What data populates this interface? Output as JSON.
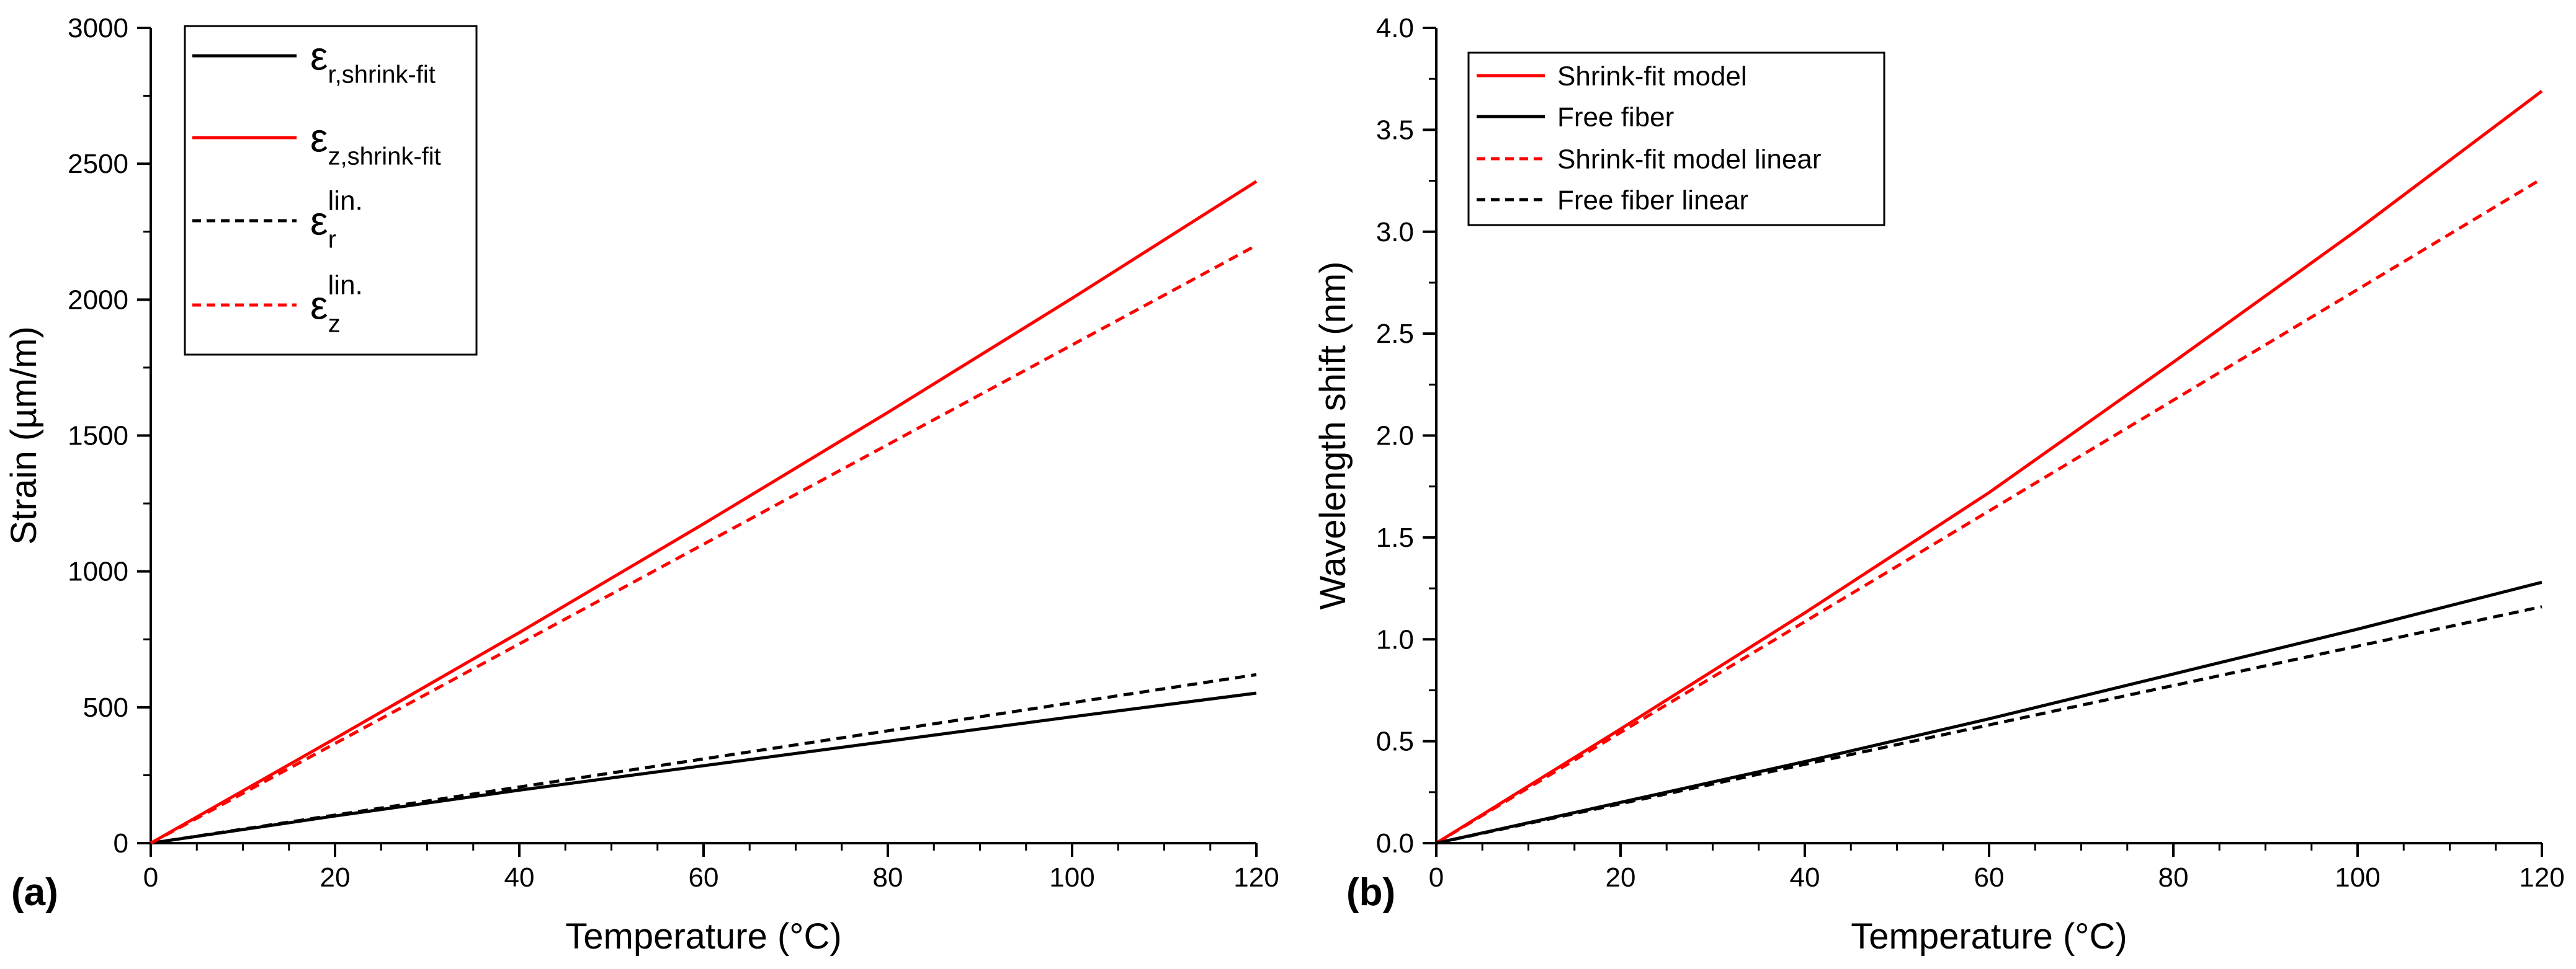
{
  "chart_data": [
    {
      "type": "line",
      "panel_label": "(a)",
      "xlabel": "Temperature (°C)",
      "ylabel": "Strain (µm/m)",
      "xlim": [
        0,
        120
      ],
      "ylim": [
        0,
        3000
      ],
      "xticks": [
        0,
        20,
        40,
        60,
        80,
        100,
        120
      ],
      "xtick_labels": [
        "0",
        "20",
        "40",
        "60",
        "80",
        "100",
        "120"
      ],
      "yticks": [
        0,
        500,
        1000,
        1500,
        2000,
        2500,
        3000
      ],
      "ytick_labels": [
        "0",
        "500",
        "1000",
        "1500",
        "2000",
        "2500",
        "3000"
      ],
      "grid": false,
      "legend_position": "top-left",
      "series": [
        {
          "name": "ε_r,shrink-fit",
          "legend_base": "ε",
          "legend_sub": "r,shrink-fit",
          "legend_sup": "",
          "color": "#000000",
          "dash": "solid",
          "x": [
            0,
            20,
            40,
            60,
            80,
            100,
            120
          ],
          "y": [
            0,
            100,
            195,
            285,
            375,
            465,
            552
          ]
        },
        {
          "name": "ε_z,shrink-fit",
          "legend_base": "ε",
          "legend_sub": "z,shrink-fit",
          "legend_sup": "",
          "color": "#ff0000",
          "dash": "solid",
          "x": [
            0,
            20,
            40,
            60,
            80,
            100,
            120
          ],
          "y": [
            0,
            385,
            775,
            1175,
            1585,
            2005,
            2435
          ]
        },
        {
          "name": "ε_r^lin.",
          "legend_base": "ε",
          "legend_sub": "r",
          "legend_sup": "lin.",
          "color": "#000000",
          "dash": "dashed",
          "x": [
            0,
            120
          ],
          "y": [
            0,
            620
          ]
        },
        {
          "name": "ε_z^lin.",
          "legend_base": "ε",
          "legend_sub": "z",
          "legend_sup": "lin.",
          "color": "#ff0000",
          "dash": "dashed",
          "x": [
            0,
            120
          ],
          "y": [
            0,
            2200
          ]
        }
      ]
    },
    {
      "type": "line",
      "panel_label": "(b)",
      "xlabel": "Temperature (°C)",
      "ylabel": "Wavelength shift (nm)",
      "xlim": [
        0,
        120
      ],
      "ylim": [
        0,
        4
      ],
      "xticks": [
        0,
        20,
        40,
        60,
        80,
        100,
        120
      ],
      "xtick_labels": [
        "0",
        "20",
        "40",
        "60",
        "80",
        "100",
        "120"
      ],
      "yticks": [
        0,
        0.5,
        1.0,
        1.5,
        2.0,
        2.5,
        3.0,
        3.5,
        4.0
      ],
      "ytick_labels": [
        "0.0",
        "0.5",
        "1.0",
        "1.5",
        "2.0",
        "2.5",
        "3.0",
        "3.5",
        "4.0"
      ],
      "grid": false,
      "legend_position": "top-left",
      "series": [
        {
          "name": "Shrink-fit model",
          "legend_base": "Shrink-fit model",
          "legend_sub": "",
          "legend_sup": "",
          "color": "#ff0000",
          "dash": "solid",
          "x": [
            0,
            20,
            40,
            60,
            80,
            100,
            120
          ],
          "y": [
            0,
            0.56,
            1.13,
            1.72,
            2.36,
            3.01,
            3.69
          ]
        },
        {
          "name": "Free fiber",
          "legend_base": "Free fiber",
          "legend_sub": "",
          "legend_sup": "",
          "color": "#000000",
          "dash": "solid",
          "x": [
            0,
            20,
            40,
            60,
            80,
            100,
            120
          ],
          "y": [
            0,
            0.2,
            0.4,
            0.61,
            0.83,
            1.05,
            1.28
          ]
        },
        {
          "name": "Shrink-fit model linear",
          "legend_base": "Shrink-fit model linear",
          "legend_sub": "",
          "legend_sup": "",
          "color": "#ff0000",
          "dash": "dashed",
          "x": [
            0,
            120
          ],
          "y": [
            0,
            3.26
          ]
        },
        {
          "name": "Free fiber linear",
          "legend_base": "Free fiber linear",
          "legend_sub": "",
          "legend_sup": "",
          "color": "#000000",
          "dash": "dashed",
          "x": [
            0,
            120
          ],
          "y": [
            0,
            1.16
          ]
        }
      ]
    }
  ]
}
